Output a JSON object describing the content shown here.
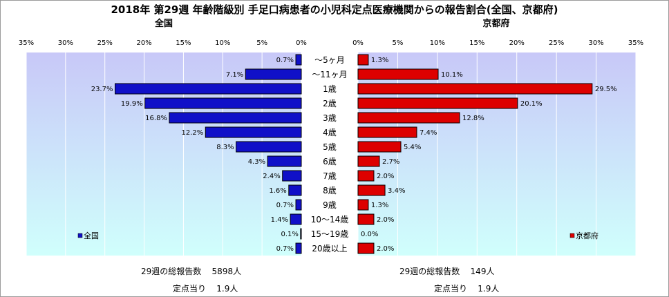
{
  "title": "2018年 第29週 年齢階級別 手足口病患者の小児科定点医療機関からの報告割合(全国、京都府)",
  "panels": {
    "left_title": "全国",
    "right_title": "京都府"
  },
  "colors": {
    "national_bar": "#1010c8",
    "kyoto_bar": "#dd0000",
    "plot_bg_top": "#c8c8f8",
    "plot_bg_bottom": "#d0fffc",
    "grid": "#ffffff"
  },
  "footer": {
    "national_total_label": "29週の総報告数",
    "national_total_value": "5898人",
    "national_per_label": "定点当り",
    "national_per_value": "1.9人",
    "kyoto_total_label": "29週の総報告数",
    "kyoto_total_value": "149人",
    "kyoto_per_label": "定点当り",
    "kyoto_per_value": "1.9人"
  },
  "chart_data": [
    {
      "type": "bar",
      "orientation": "horizontal",
      "x_direction": "reversed",
      "title": "全国",
      "categories": [
        "～5ヶ月",
        "～11ヶ月",
        "1歳",
        "2歳",
        "3歳",
        "4歳",
        "5歳",
        "6歳",
        "7歳",
        "8歳",
        "9歳",
        "10～14歳",
        "15～19歳",
        "20歳以上"
      ],
      "series": [
        {
          "name": "全国",
          "values": [
            0.7,
            7.1,
            23.7,
            19.9,
            16.8,
            12.2,
            8.3,
            4.3,
            2.4,
            1.6,
            0.7,
            1.4,
            0.1,
            0.7
          ],
          "labels": [
            "0.7%",
            "7.1%",
            "23.7%",
            "19.9%",
            "16.8%",
            "12.2%",
            "8.3%",
            "4.3%",
            "2.4%",
            "1.6%",
            "0.7%",
            "1.4%",
            "0.1%",
            "0.7%"
          ]
        }
      ],
      "xlim": [
        0,
        35
      ],
      "xticks": [
        "35%",
        "30%",
        "25%",
        "20%",
        "15%",
        "10%",
        "5%",
        "0%"
      ],
      "grid": true,
      "legend": "bottom-left"
    },
    {
      "type": "bar",
      "orientation": "horizontal",
      "title": "京都府",
      "categories": [
        "～5ヶ月",
        "～11ヶ月",
        "1歳",
        "2歳",
        "3歳",
        "4歳",
        "5歳",
        "6歳",
        "7歳",
        "8歳",
        "9歳",
        "10～14歳",
        "15～19歳",
        "20歳以上"
      ],
      "series": [
        {
          "name": "京都府",
          "values": [
            1.3,
            10.1,
            29.5,
            20.1,
            12.8,
            7.4,
            5.4,
            2.7,
            2.0,
            3.4,
            1.3,
            2.0,
            0.0,
            2.0
          ],
          "labels": [
            "1.3%",
            "10.1%",
            "29.5%",
            "20.1%",
            "12.8%",
            "7.4%",
            "5.4%",
            "2.7%",
            "2.0%",
            "3.4%",
            "1.3%",
            "2.0%",
            "0.0%",
            "2.0%"
          ]
        }
      ],
      "xlim": [
        0,
        35
      ],
      "xticks": [
        "0%",
        "5%",
        "10%",
        "15%",
        "20%",
        "25%",
        "30%",
        "35%"
      ],
      "grid": true,
      "legend": "bottom-right"
    }
  ]
}
